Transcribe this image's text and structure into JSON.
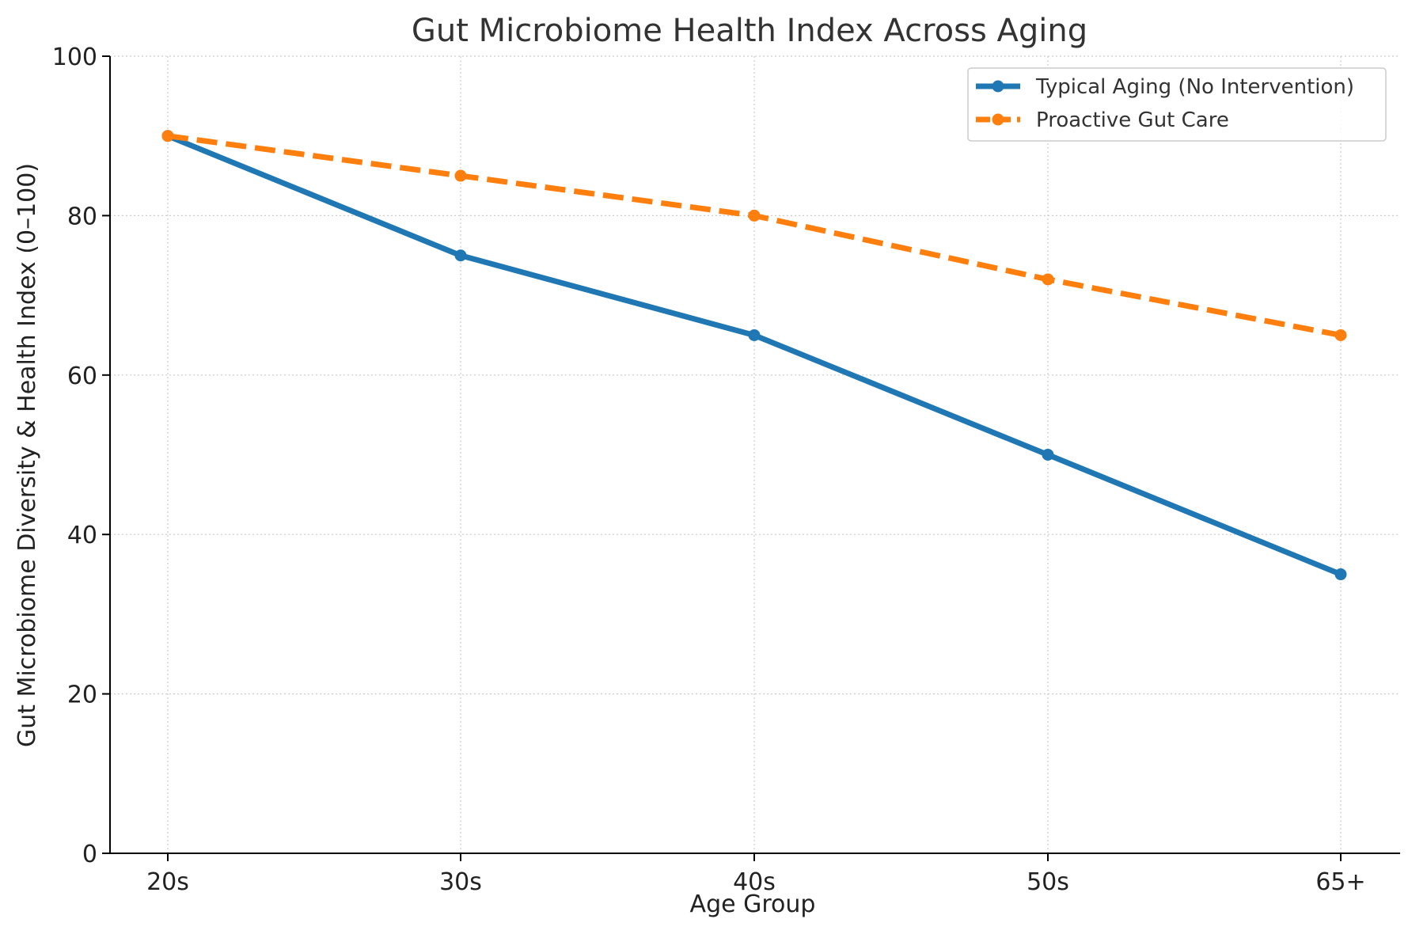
{
  "chart_data": {
    "type": "line",
    "title": "Gut Microbiome Health Index Across Aging",
    "xlabel": "Age Group",
    "ylabel": "Gut Microbiome Diversity & Health Index (0–100)",
    "categories": [
      "20s",
      "30s",
      "40s",
      "50s",
      "65+"
    ],
    "ylim": [
      0,
      100
    ],
    "yticks": [
      0,
      20,
      40,
      60,
      80,
      100
    ],
    "grid": true,
    "legend_position": "top-right",
    "series": [
      {
        "name": "Typical Aging (No Intervention)",
        "values": [
          90,
          75,
          65,
          50,
          35
        ],
        "color": "#1f77b4",
        "line_style": "solid",
        "marker": "circle"
      },
      {
        "name": "Proactive Gut Care",
        "values": [
          90,
          85,
          80,
          72,
          65
        ],
        "color": "#ff7f0e",
        "line_style": "dashed",
        "marker": "circle"
      }
    ]
  }
}
